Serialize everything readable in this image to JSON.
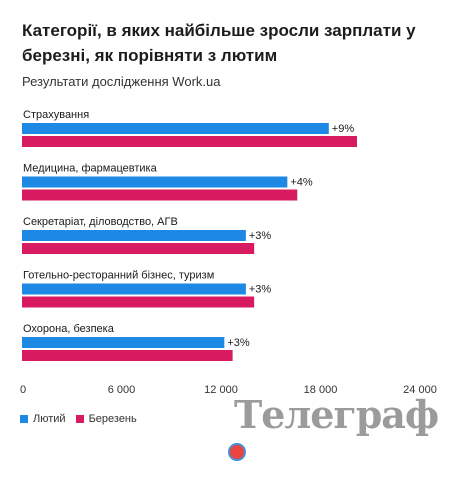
{
  "header": {
    "title": "Категорії, в яких найбільше зросли зарплати у березні, як порівняти з лютим",
    "subtitle": "Результати дослідження Work.ua"
  },
  "colors": {
    "feb": "#1e88e5",
    "mar": "#d81b60"
  },
  "chart_data": {
    "type": "bar",
    "orientation": "horizontal",
    "categories": [
      "Страхування",
      "Медицина, фармацевтика",
      "Секретаріат, діловодство, АГВ",
      "Готельно-ресторанний бізнес, туризм",
      "Охорона, безпека"
    ],
    "series": [
      {
        "name": "Лютий",
        "values": [
          18500,
          16000,
          13500,
          13500,
          12200
        ]
      },
      {
        "name": "Березень",
        "values": [
          20200,
          16600,
          14000,
          14000,
          12700
        ]
      }
    ],
    "annotations": [
      "+9%",
      "+4%",
      "+3%",
      "+3%",
      "+3%"
    ],
    "xlim": [
      0,
      24000
    ],
    "xticks": [
      "0",
      "6 000",
      "12 000",
      "18 000",
      "24 000"
    ],
    "xtick_values": [
      0,
      6000,
      12000,
      18000,
      24000
    ],
    "legend_position": "bottom-left"
  },
  "watermark": {
    "text": "Телеграф"
  }
}
